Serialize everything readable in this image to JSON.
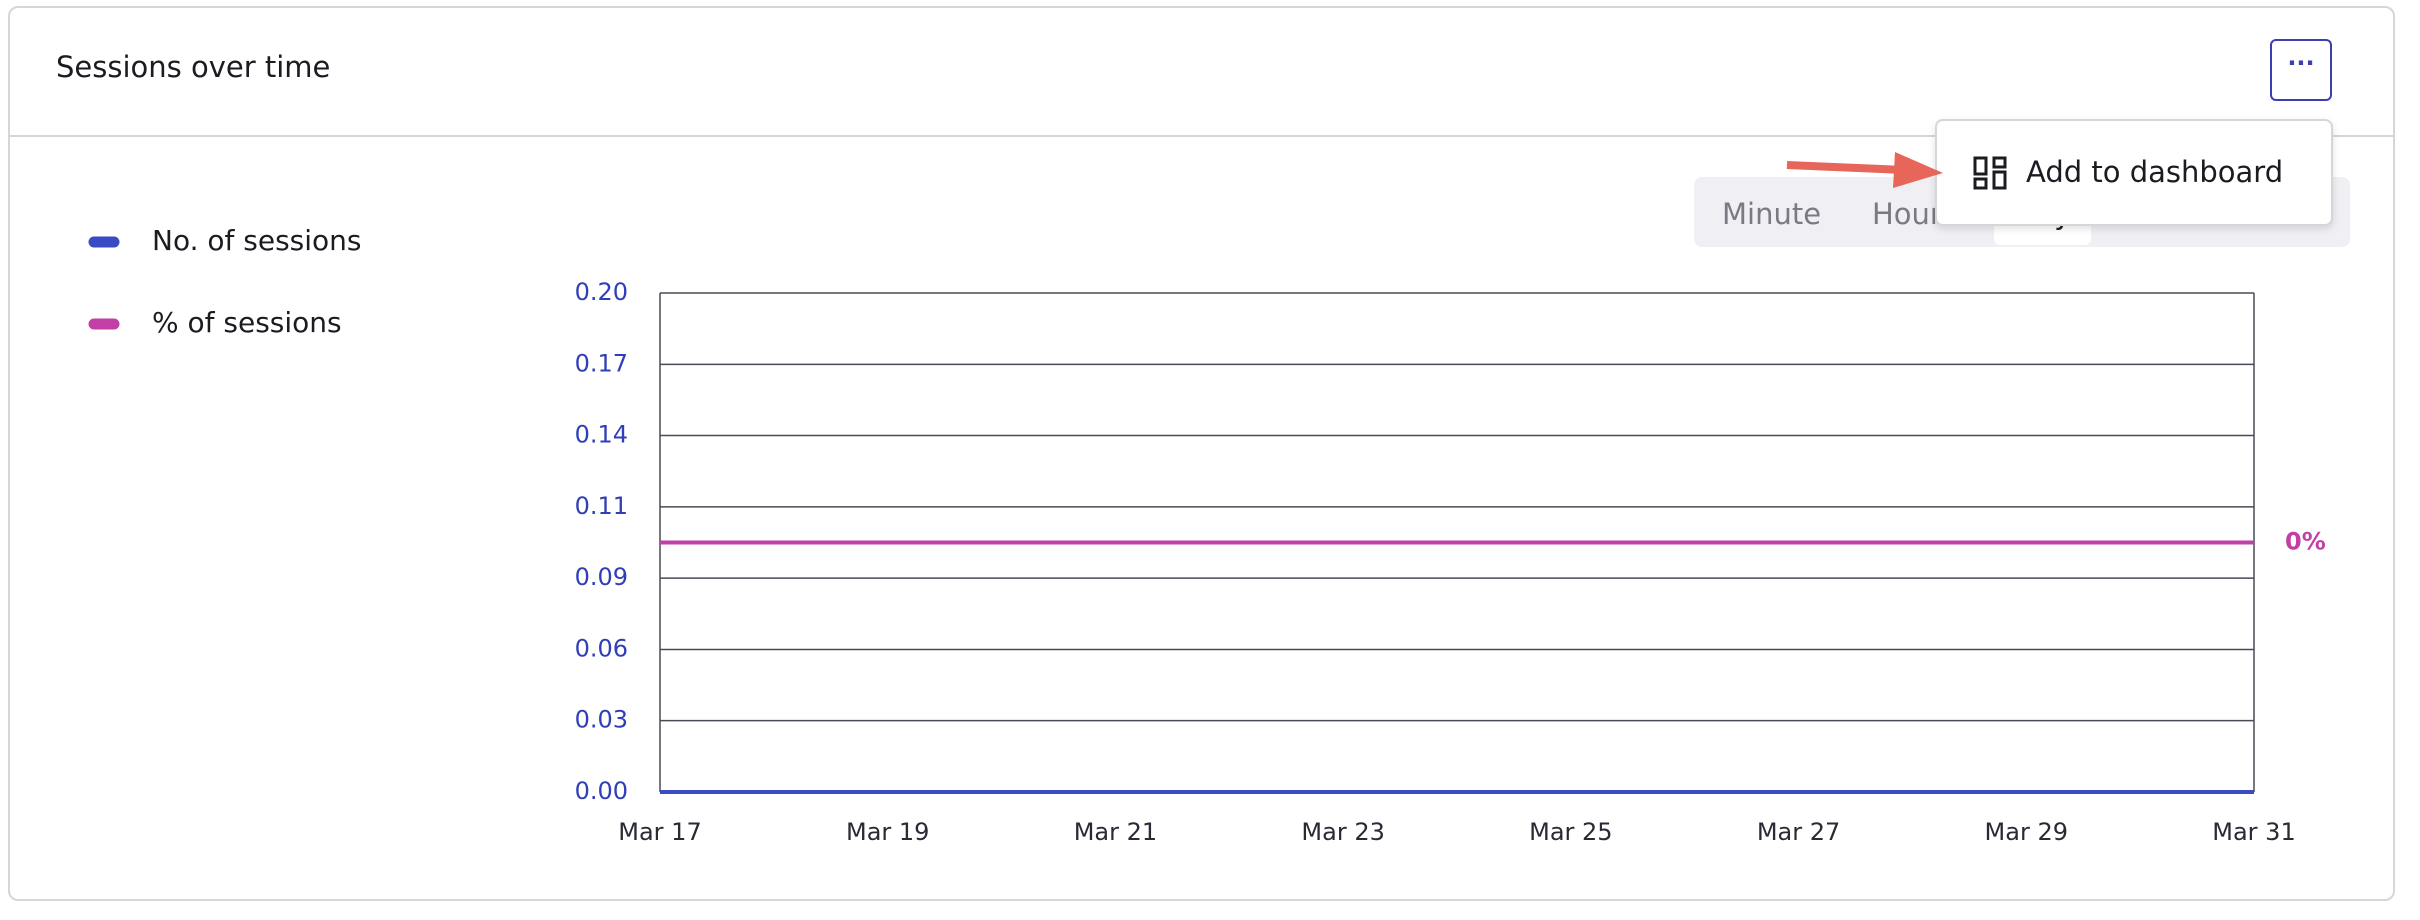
{
  "header": {
    "title": "Sessions over time"
  },
  "granularity": {
    "options": [
      "Minute",
      "Hour",
      "Day"
    ]
  },
  "menu": {
    "items": [
      "Add to dashboard"
    ]
  },
  "chart_data": {
    "type": "line",
    "categories": [
      "Mar 17",
      null,
      "Mar 19",
      null,
      "Mar 21",
      null,
      "Mar 23",
      null,
      "Mar 25",
      null,
      "Mar 27",
      null,
      "Mar 29",
      null,
      "Mar 31"
    ],
    "series": [
      {
        "name": "No. of sessions",
        "color": "#3a4bc4",
        "values": [
          0,
          0,
          0,
          0,
          0,
          0,
          0,
          0,
          0,
          0,
          0,
          0,
          0,
          0,
          0
        ]
      },
      {
        "name": "% of sessions",
        "color": "#c23fa6",
        "axis": "y2",
        "values": [
          0,
          0,
          0,
          0,
          0,
          0,
          0,
          0,
          0,
          0,
          0,
          0,
          0,
          0,
          0
        ],
        "value_labels": [
          null,
          null,
          null,
          null,
          null,
          null,
          null,
          null,
          null,
          null,
          null,
          null,
          null,
          null,
          "0%"
        ]
      }
    ],
    "ylim": [
      0,
      0.2
    ],
    "yticks": [
      {
        "value": 0,
        "label": "0.00"
      },
      {
        "value": 0.0286,
        "label": "0.03"
      },
      {
        "value": 0.0571,
        "label": "0.06"
      },
      {
        "value": 0.0857,
        "label": "0.09"
      },
      {
        "value": 0.1143,
        "label": "0.11"
      },
      {
        "value": 0.1429,
        "label": "0.14"
      },
      {
        "value": 0.1714,
        "label": "0.17"
      },
      {
        "value": 0.2,
        "label": "0.20"
      }
    ],
    "y2lim": [
      -1,
      1
    ],
    "grid": true,
    "legend": "left"
  }
}
